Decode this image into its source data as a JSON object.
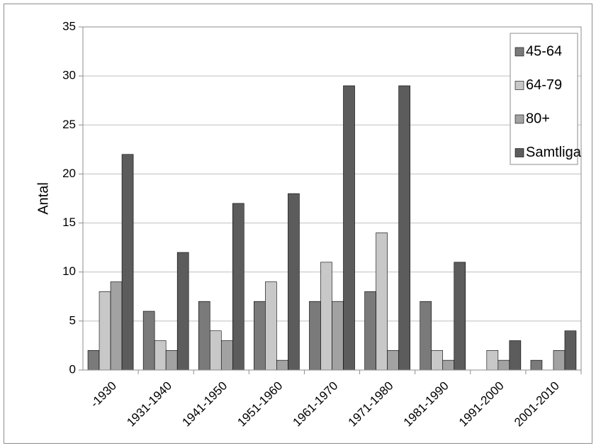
{
  "chart_data": {
    "type": "bar",
    "y_label": "Antal",
    "categories": [
      "-1930",
      "1931-1940",
      "1941-1950",
      "1951-1960",
      "1961-1970",
      "1971-1980",
      "1981-1990",
      "1991-2000",
      "2001-2010"
    ],
    "series": [
      {
        "name": "45-64",
        "color": "#7a7a7a",
        "values": [
          2,
          6,
          7,
          7,
          7,
          8,
          7,
          0,
          1
        ]
      },
      {
        "name": "64-79",
        "color": "#c8c8c8",
        "values": [
          8,
          3,
          4,
          9,
          11,
          14,
          2,
          2,
          0
        ]
      },
      {
        "name": "80+",
        "color": "#a2a2a2",
        "values": [
          9,
          2,
          3,
          1,
          7,
          2,
          1,
          1,
          2
        ]
      },
      {
        "name": "Samtliga",
        "color": "#5c5c5c",
        "values": [
          22,
          12,
          17,
          18,
          29,
          29,
          11,
          3,
          4
        ]
      }
    ],
    "ylim": [
      0,
      35
    ],
    "yticks": [
      0,
      5,
      10,
      15,
      20,
      25,
      30,
      35
    ],
    "grid": true,
    "legend": "top-right"
  }
}
